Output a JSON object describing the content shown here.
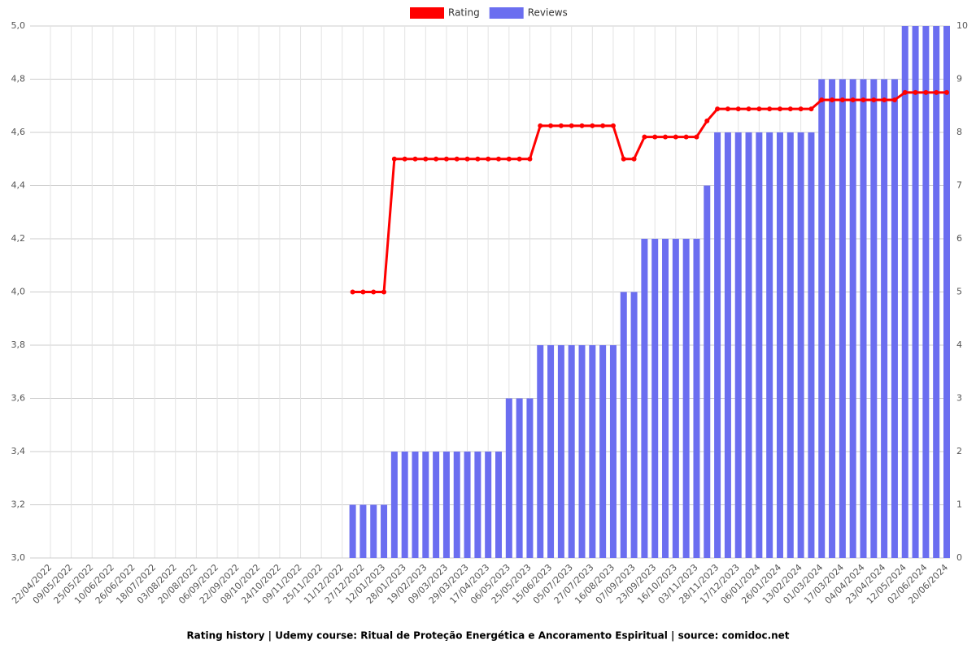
{
  "chart_data": {
    "type": "bar-line",
    "title": "Rating history | Udemy course: Ritual de Proteção Energética e Ancoramento Espiritual | source: comidoc.net",
    "categories": [
      "22/04/2022",
      null,
      "09/05/2022",
      null,
      "25/05/2022",
      null,
      "10/06/2022",
      null,
      "26/06/2022",
      null,
      "18/07/2022",
      null,
      "03/08/2022",
      null,
      "20/08/2022",
      null,
      "06/09/2022",
      null,
      "22/09/2022",
      null,
      "08/10/2022",
      null,
      "24/10/2022",
      null,
      "09/11/2022",
      null,
      "25/11/2022",
      null,
      "11/12/2022",
      null,
      "27/12/2022",
      null,
      "12/01/2023",
      null,
      "28/01/2023",
      null,
      "19/02/2023",
      null,
      "09/03/2023",
      null,
      "29/03/2023",
      null,
      "17/04/2023",
      null,
      "06/05/2023",
      null,
      "25/05/2023",
      null,
      "15/06/2023",
      null,
      "05/07/2023",
      null,
      "27/07/2023",
      null,
      "16/08/2023",
      null,
      "07/09/2023",
      null,
      "23/09/2023",
      null,
      "16/10/2023",
      null,
      "03/11/2023",
      null,
      "28/11/2023",
      null,
      "17/12/2023",
      null,
      "06/01/2024",
      null,
      "26/01/2024",
      null,
      "13/02/2024",
      null,
      "01/03/2024",
      null,
      "17/03/2024",
      null,
      "04/04/2024",
      null,
      "23/04/2024",
      null,
      "12/05/2024",
      null,
      "02/06/2024",
      null,
      "20/06/2024"
    ],
    "series": [
      {
        "name": "Rating",
        "color": "#ff0000",
        "kind": "line",
        "values": [
          null,
          null,
          null,
          null,
          null,
          null,
          null,
          null,
          null,
          null,
          null,
          null,
          null,
          null,
          null,
          null,
          null,
          null,
          null,
          null,
          null,
          null,
          null,
          null,
          null,
          null,
          null,
          null,
          null,
          4.0,
          4.0,
          4.0,
          4.0,
          4.5,
          4.5,
          4.5,
          4.5,
          4.5,
          4.5,
          4.5,
          4.5,
          4.5,
          4.5,
          4.5,
          4.5,
          4.5,
          4.5,
          4.625,
          4.625,
          4.625,
          4.625,
          4.625,
          4.625,
          4.625,
          4.625,
          4.5,
          4.5,
          4.583,
          4.583,
          4.583,
          4.583,
          4.583,
          4.583,
          4.643,
          4.688,
          4.688,
          4.688,
          4.688,
          4.688,
          4.688,
          4.688,
          4.688,
          4.688,
          4.688,
          4.722,
          4.722,
          4.722,
          4.722,
          4.722,
          4.722,
          4.722,
          4.722,
          4.75,
          4.75,
          4.75,
          4.75,
          4.75
        ]
      },
      {
        "name": "Reviews",
        "color": "#6b6ef0",
        "kind": "bar",
        "axis": "y2",
        "values": [
          null,
          null,
          null,
          null,
          null,
          null,
          null,
          null,
          null,
          null,
          null,
          null,
          null,
          null,
          null,
          null,
          null,
          null,
          null,
          null,
          null,
          null,
          null,
          null,
          null,
          null,
          null,
          null,
          null,
          1,
          1,
          1,
          1,
          2,
          2,
          2,
          2,
          2,
          2,
          2,
          2,
          2,
          2,
          2,
          3,
          3,
          3,
          4,
          4,
          4,
          4,
          4,
          4,
          4,
          4,
          5,
          5,
          6,
          6,
          6,
          6,
          6,
          6,
          7,
          8,
          8,
          8,
          8,
          8,
          8,
          8,
          8,
          8,
          8,
          9,
          9,
          9,
          9,
          9,
          9,
          9,
          9,
          10,
          10,
          10,
          10,
          10
        ]
      }
    ],
    "ylim": [
      3.0,
      5.0
    ],
    "yticks": [
      {
        "value": 3.0,
        "label": "3,0"
      },
      {
        "value": 3.2,
        "label": "3,2"
      },
      {
        "value": 3.4,
        "label": "3,4"
      },
      {
        "value": 3.6,
        "label": "3,6"
      },
      {
        "value": 3.8,
        "label": "3,8"
      },
      {
        "value": 4.0,
        "label": "4,0"
      },
      {
        "value": 4.2,
        "label": "4,2"
      },
      {
        "value": 4.4,
        "label": "4,4"
      },
      {
        "value": 4.6,
        "label": "4,6"
      },
      {
        "value": 4.8,
        "label": "4,8"
      },
      {
        "value": 5.0,
        "label": "5,0"
      }
    ],
    "y2lim": [
      0,
      10
    ],
    "y2ticks": [
      0,
      1,
      2,
      3,
      4,
      5,
      6,
      7,
      8,
      9,
      10
    ],
    "grid": true,
    "legend": "top"
  }
}
